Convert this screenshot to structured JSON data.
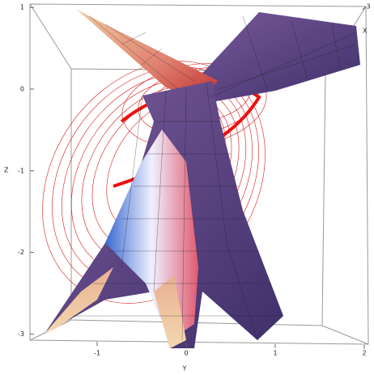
{
  "axes": {
    "z": {
      "label": "Z",
      "ticks": [
        1,
        0,
        -1,
        -2,
        -3
      ]
    },
    "y": {
      "label": "Y",
      "ticks": [
        -1,
        0,
        1,
        2
      ]
    },
    "x": {
      "label": "X",
      "ticks": [
        3
      ]
    }
  }
}
